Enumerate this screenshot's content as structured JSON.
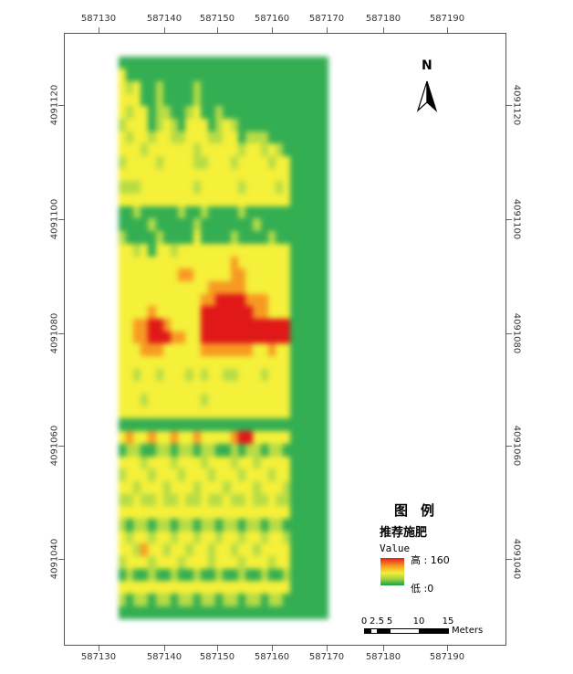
{
  "map": {
    "x_ticks": [
      "587130",
      "587140",
      "587150",
      "587160",
      "587170",
      "587180",
      "587190"
    ],
    "y_ticks": [
      "4091120",
      "4091100",
      "4091080",
      "4091060",
      "4091040"
    ],
    "colors": {
      "high": "#e01818",
      "orange": "#f79a22",
      "yellow": "#f5f03a",
      "yellowgreen": "#b6dc46",
      "green": "#33ae52",
      "background_green": "#19a34a"
    },
    "raster_grid": [
      "GGGGGGGGGGGGGGGGGGGGGGGGGGGG",
      "YGGGGGGGGGGGGGGGGGGGGGGGGGGG",
      "YLYGGLGGGGLGGGGGGGGGGGGGGGGG",
      "YYYGGLGGGGLGGGGGGGGGGGGGGGGG",
      "YLYYGLLGGLYGGLGGGGGGGGGGGGGG",
      "LYYYGLYLGYYYGLYLGGGGGGGGGGGG",
      "YLYYLYYLLYYYLLYYGLLLGGGGGGGG",
      "YYYLYYYYYYLYYYYYLYYLYLGGGGGG",
      "LYYYYLYYYYLLYYYLYYYYLYYGGGGG",
      "YYYYYYYYYYYYYYYYYYYYYYYGGGGG",
      "LLLYYYYYYYLYYYYYLYYYYLYGGGGG",
      "YYYYYYYYYYYYYYYYYYYYYYYGGGGG",
      "GGLGGGGGLGGLGGGGLGGGGGGGGGGG",
      "GGGGLGGGGGLGGGGGGGLGGGGGGGGG",
      "LGGGGLGGGGYGGGGLGGGGLGGGGGGG",
      "YYLYGYYLYYYYYYYYYYYYYYYGGGGG",
      "YYYYYYYYYYYYYYYOYYYYYYYGGGGG",
      "YYYYYYYYOOYYYYYOOYYYYYYGGGGG",
      "YYYYYYYYYYYYOOOOOYYYYYYGGGGG",
      "YYYYYYYYYYYOORRRROOOYYYGGGGG",
      "YYYYOYYYYYYRRRRRRROOYYYGGGGG",
      "YYOORROYYYYRRRRRRRRRRRRGGGGG",
      "YYOORRROOYYRRRRRRRRRRRRGGGGG",
      "YYYOOOYYYYYOOOOOOOYYOYYGGGGG",
      "YYYYYYYYYYYYYYYYYYYYYYYGGGGG",
      "YYLYYLYYYLYLYYLLYYYLYYYGGGGG",
      "YYYYYYYYYYYYYYYYYYYYYYYGGGGG",
      "YYYLYYYYYYYLYYYYYYYYYYYGGGGG",
      "YYYYYYYYYYYYYYYYYYYYYYYGGGGG",
      "GGGGGGGGGGGGGGGGGGGGGGGGGGGG",
      "YOYYOYYOYYOYYYYORRYYYYYGGGGG",
      "GLLGGLLGLLGLLGGLGLLGLLGGGGGG",
      "YYYLYYYLYYYLYYYLYYLYYYYGGGGG",
      "LYYYLYYYLYYYLYYYLYYYLYYGGGGG",
      "YYLYYYLYYYLYYYLYYYLYYYLGGGGG",
      "LLYLLYLLYLLYLLYLLYLLYLLGGGGG",
      "YYYYYYYYYYYYYYYYYYYYYYYGGGGG",
      "LGLLGLLGLLGLLGLLGLLGLLGGGGGG",
      "YLYYLYYLYYLYYLYYLYYLYYLGGGGG",
      "YYLOYYLYYLYYLYYLYYLYYYYGGGGG",
      "LYYYLYYYLYYYLYYYLYYYLYYGGGGG",
      "GLGGLGGLGGLGGLGGLGGLGGLGGGGG",
      "YYYYYYYYYYYYYYYYYYYYYYYGGGGG",
      "LGLLGLLGLLGLLGLLGLLGLLGGGGGG",
      "GGGGGGGGGGGGGGGGGGGGGGGGGGGG"
    ],
    "raster_legend": {
      "R": "high",
      "O": "orange",
      "Y": "yellow",
      "L": "yellowgreen",
      "G": "green"
    }
  },
  "north_arrow": {
    "letter": "N"
  },
  "legend": {
    "title": "图例",
    "subtitle": "推荐施肥",
    "value_label": "Value",
    "high_label": "高 : 160",
    "low_label": "低 :0"
  },
  "scale_bar": {
    "labels": [
      "0",
      "2.5",
      "5",
      "10",
      "15"
    ],
    "units": "Meters"
  }
}
